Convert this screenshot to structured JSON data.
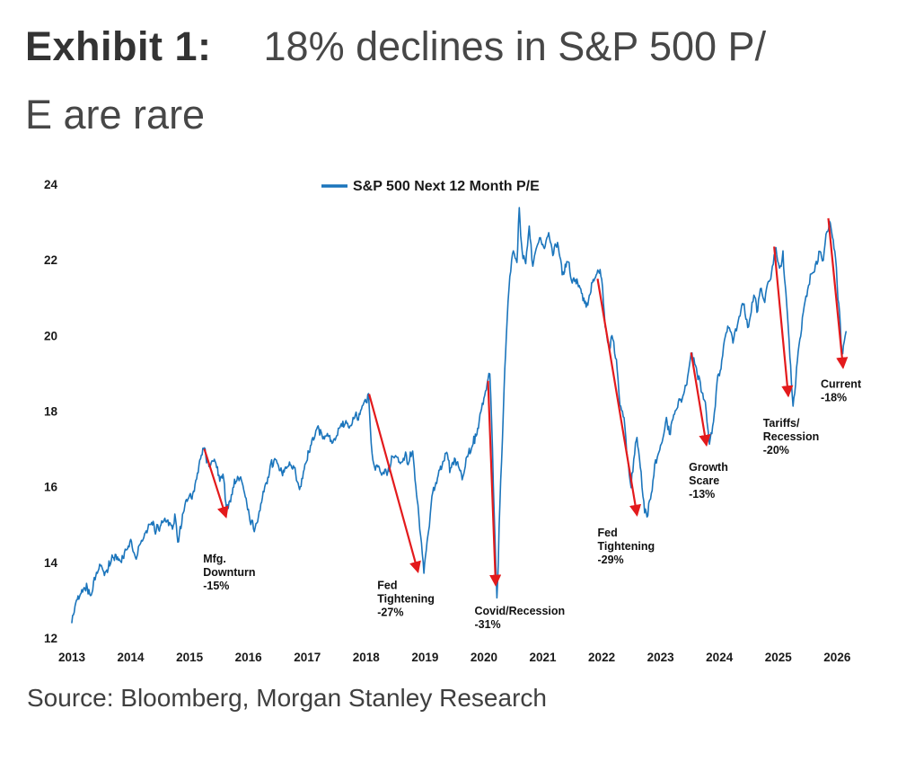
{
  "header": {
    "exhibit_label": "Exhibit 1:",
    "title_line1": "18% declines in S&P 500 P/",
    "title_line2": "E are rare",
    "full_title": "Exhibit 1: 18% declines in S&P 500 P/E are rare"
  },
  "source": "Source: Bloomberg, Morgan Stanley Research",
  "chart_data": {
    "type": "line",
    "title": "18% declines in S&P 500 P/E are rare",
    "xlabel": "",
    "ylabel": "",
    "xlim": [
      2013,
      2026.3
    ],
    "ylim": [
      12,
      24
    ],
    "grid": false,
    "x_ticks": [
      2013,
      2014,
      2015,
      2016,
      2017,
      2018,
      2019,
      2020,
      2021,
      2022,
      2023,
      2024,
      2025,
      2026
    ],
    "y_ticks": [
      12,
      14,
      16,
      18,
      20,
      22,
      24
    ],
    "legend": {
      "label": "S&P 500 Next 12 Month P/E",
      "position": "top-center"
    },
    "arrow_color": "#e31a1c",
    "series": [
      {
        "name": "S&P 500 Next 12 Month P/E",
        "color": "#1b75bc",
        "keypoints": [
          [
            2013.0,
            12.4
          ],
          [
            2013.08,
            13.0
          ],
          [
            2013.17,
            13.3
          ],
          [
            2013.25,
            13.5
          ],
          [
            2013.33,
            13.2
          ],
          [
            2013.42,
            13.7
          ],
          [
            2013.5,
            13.9
          ],
          [
            2013.58,
            13.7
          ],
          [
            2013.67,
            14.0
          ],
          [
            2013.75,
            14.2
          ],
          [
            2013.83,
            14.0
          ],
          [
            2013.92,
            14.4
          ],
          [
            2014.0,
            14.6
          ],
          [
            2014.08,
            14.2
          ],
          [
            2014.17,
            14.5
          ],
          [
            2014.25,
            14.7
          ],
          [
            2014.33,
            14.9
          ],
          [
            2014.42,
            14.8
          ],
          [
            2014.5,
            15.0
          ],
          [
            2014.58,
            15.2
          ],
          [
            2014.67,
            15.1
          ],
          [
            2014.75,
            15.3
          ],
          [
            2014.8,
            14.6
          ],
          [
            2014.88,
            15.3
          ],
          [
            2014.96,
            15.6
          ],
          [
            2015.04,
            15.6
          ],
          [
            2015.12,
            16.2
          ],
          [
            2015.2,
            16.8
          ],
          [
            2015.25,
            17.0
          ],
          [
            2015.33,
            16.6
          ],
          [
            2015.42,
            16.8
          ],
          [
            2015.5,
            16.4
          ],
          [
            2015.58,
            16.2
          ],
          [
            2015.63,
            15.3
          ],
          [
            2015.71,
            15.8
          ],
          [
            2015.79,
            16.1
          ],
          [
            2015.88,
            16.2
          ],
          [
            2015.96,
            15.7
          ],
          [
            2016.04,
            15.0
          ],
          [
            2016.1,
            14.8
          ],
          [
            2016.17,
            15.3
          ],
          [
            2016.25,
            15.9
          ],
          [
            2016.33,
            16.3
          ],
          [
            2016.42,
            16.5
          ],
          [
            2016.5,
            16.6
          ],
          [
            2016.58,
            16.3
          ],
          [
            2016.67,
            16.5
          ],
          [
            2016.75,
            16.4
          ],
          [
            2016.83,
            16.1
          ],
          [
            2016.88,
            16.0
          ],
          [
            2016.96,
            16.6
          ],
          [
            2017.04,
            16.9
          ],
          [
            2017.12,
            17.2
          ],
          [
            2017.21,
            17.3
          ],
          [
            2017.29,
            17.2
          ],
          [
            2017.38,
            17.4
          ],
          [
            2017.46,
            17.3
          ],
          [
            2017.54,
            17.5
          ],
          [
            2017.63,
            17.6
          ],
          [
            2017.71,
            17.5
          ],
          [
            2017.79,
            17.8
          ],
          [
            2017.88,
            18.0
          ],
          [
            2017.96,
            18.3
          ],
          [
            2018.04,
            18.5
          ],
          [
            2018.1,
            17.0
          ],
          [
            2018.17,
            16.6
          ],
          [
            2018.25,
            16.3
          ],
          [
            2018.33,
            16.5
          ],
          [
            2018.42,
            16.6
          ],
          [
            2018.5,
            16.8
          ],
          [
            2018.58,
            16.7
          ],
          [
            2018.67,
            16.9
          ],
          [
            2018.71,
            16.6
          ],
          [
            2018.79,
            16.9
          ],
          [
            2018.83,
            16.2
          ],
          [
            2018.88,
            15.6
          ],
          [
            2018.94,
            14.5
          ],
          [
            2018.98,
            13.7
          ],
          [
            2019.06,
            14.8
          ],
          [
            2019.13,
            15.8
          ],
          [
            2019.21,
            16.3
          ],
          [
            2019.29,
            16.5
          ],
          [
            2019.38,
            16.8
          ],
          [
            2019.42,
            16.3
          ],
          [
            2019.5,
            16.7
          ],
          [
            2019.58,
            16.5
          ],
          [
            2019.63,
            16.2
          ],
          [
            2019.71,
            16.8
          ],
          [
            2019.79,
            17.0
          ],
          [
            2019.88,
            17.4
          ],
          [
            2019.96,
            18.0
          ],
          [
            2020.04,
            18.5
          ],
          [
            2020.1,
            18.9
          ],
          [
            2020.16,
            16.0
          ],
          [
            2020.22,
            13.1
          ],
          [
            2020.27,
            15.5
          ],
          [
            2020.33,
            18.0
          ],
          [
            2020.38,
            20.0
          ],
          [
            2020.44,
            21.5
          ],
          [
            2020.5,
            22.3
          ],
          [
            2020.56,
            22.0
          ],
          [
            2020.6,
            23.4
          ],
          [
            2020.65,
            22.2
          ],
          [
            2020.71,
            21.9
          ],
          [
            2020.77,
            22.9
          ],
          [
            2020.83,
            21.9
          ],
          [
            2020.9,
            22.4
          ],
          [
            2020.96,
            22.6
          ],
          [
            2021.04,
            22.4
          ],
          [
            2021.1,
            22.8
          ],
          [
            2021.17,
            22.1
          ],
          [
            2021.25,
            22.4
          ],
          [
            2021.33,
            21.6
          ],
          [
            2021.42,
            21.9
          ],
          [
            2021.5,
            21.4
          ],
          [
            2021.58,
            21.6
          ],
          [
            2021.67,
            21.2
          ],
          [
            2021.75,
            20.9
          ],
          [
            2021.83,
            21.4
          ],
          [
            2021.92,
            21.6
          ],
          [
            2022.0,
            21.5
          ],
          [
            2022.06,
            20.2
          ],
          [
            2022.13,
            19.6
          ],
          [
            2022.19,
            19.9
          ],
          [
            2022.25,
            19.3
          ],
          [
            2022.31,
            18.2
          ],
          [
            2022.38,
            17.8
          ],
          [
            2022.44,
            16.8
          ],
          [
            2022.5,
            16.0
          ],
          [
            2022.56,
            16.9
          ],
          [
            2022.6,
            17.3
          ],
          [
            2022.67,
            16.4
          ],
          [
            2022.73,
            15.3
          ],
          [
            2022.77,
            15.2
          ],
          [
            2022.83,
            15.7
          ],
          [
            2022.9,
            16.6
          ],
          [
            2022.96,
            16.9
          ],
          [
            2023.04,
            17.3
          ],
          [
            2023.1,
            17.9
          ],
          [
            2023.15,
            17.4
          ],
          [
            2023.21,
            17.8
          ],
          [
            2023.29,
            18.1
          ],
          [
            2023.38,
            18.5
          ],
          [
            2023.46,
            19.0
          ],
          [
            2023.52,
            19.6
          ],
          [
            2023.58,
            19.3
          ],
          [
            2023.65,
            18.9
          ],
          [
            2023.73,
            18.3
          ],
          [
            2023.79,
            17.7
          ],
          [
            2023.83,
            17.1
          ],
          [
            2023.9,
            17.8
          ],
          [
            2023.96,
            18.8
          ],
          [
            2024.04,
            19.4
          ],
          [
            2024.1,
            19.9
          ],
          [
            2024.17,
            20.2
          ],
          [
            2024.23,
            19.8
          ],
          [
            2024.29,
            20.1
          ],
          [
            2024.35,
            20.5
          ],
          [
            2024.42,
            20.8
          ],
          [
            2024.48,
            20.2
          ],
          [
            2024.54,
            20.6
          ],
          [
            2024.6,
            21.0
          ],
          [
            2024.65,
            20.6
          ],
          [
            2024.71,
            21.2
          ],
          [
            2024.77,
            20.9
          ],
          [
            2024.83,
            21.4
          ],
          [
            2024.9,
            21.9
          ],
          [
            2024.96,
            22.3
          ],
          [
            2025.02,
            21.8
          ],
          [
            2025.08,
            22.3
          ],
          [
            2025.13,
            21.2
          ],
          [
            2025.17,
            20.2
          ],
          [
            2025.21,
            19.3
          ],
          [
            2025.25,
            18.2
          ],
          [
            2025.31,
            19.2
          ],
          [
            2025.38,
            20.0
          ],
          [
            2025.44,
            20.7
          ],
          [
            2025.5,
            21.2
          ],
          [
            2025.56,
            21.6
          ],
          [
            2025.63,
            21.9
          ],
          [
            2025.69,
            22.3
          ],
          [
            2025.75,
            22.0
          ],
          [
            2025.81,
            22.7
          ],
          [
            2025.87,
            23.1
          ],
          [
            2025.92,
            22.6
          ],
          [
            2025.96,
            22.2
          ],
          [
            2026.0,
            21.4
          ],
          [
            2026.04,
            20.6
          ],
          [
            2026.08,
            19.6
          ],
          [
            2026.12,
            19.9
          ],
          [
            2026.15,
            20.1
          ]
        ]
      }
    ],
    "arrows": [
      {
        "x1": 2015.25,
        "y1": 17.0,
        "x2": 2015.62,
        "y2": 15.2
      },
      {
        "x1": 2018.05,
        "y1": 18.45,
        "x2": 2018.88,
        "y2": 13.75
      },
      {
        "x1": 2020.07,
        "y1": 18.8,
        "x2": 2020.2,
        "y2": 13.4
      },
      {
        "x1": 2021.93,
        "y1": 21.5,
        "x2": 2022.6,
        "y2": 15.25
      },
      {
        "x1": 2023.52,
        "y1": 19.55,
        "x2": 2023.78,
        "y2": 17.1
      },
      {
        "x1": 2024.93,
        "y1": 22.35,
        "x2": 2025.17,
        "y2": 18.4
      },
      {
        "x1": 2025.85,
        "y1": 23.1,
        "x2": 2026.1,
        "y2": 19.15
      }
    ],
    "annotations": [
      {
        "lines": [
          "Mfg.",
          "Downturn",
          "-15%"
        ],
        "x": 2015.23,
        "y": 14.0
      },
      {
        "lines": [
          "Fed",
          "Tightening",
          "-27%"
        ],
        "x": 2018.19,
        "y": 13.3
      },
      {
        "lines": [
          "Covid/Recession",
          "-31%"
        ],
        "x": 2019.84,
        "y": 12.62
      },
      {
        "lines": [
          "Fed",
          "Tightening",
          "-29%"
        ],
        "x": 2021.93,
        "y": 14.68
      },
      {
        "lines": [
          "Growth",
          "Scare",
          "-13%"
        ],
        "x": 2023.48,
        "y": 16.42
      },
      {
        "lines": [
          "Tariffs/",
          "Recession",
          "-20%"
        ],
        "x": 2024.74,
        "y": 17.58
      },
      {
        "lines": [
          "Current",
          "-18%"
        ],
        "x": 2025.72,
        "y": 18.62
      }
    ]
  }
}
